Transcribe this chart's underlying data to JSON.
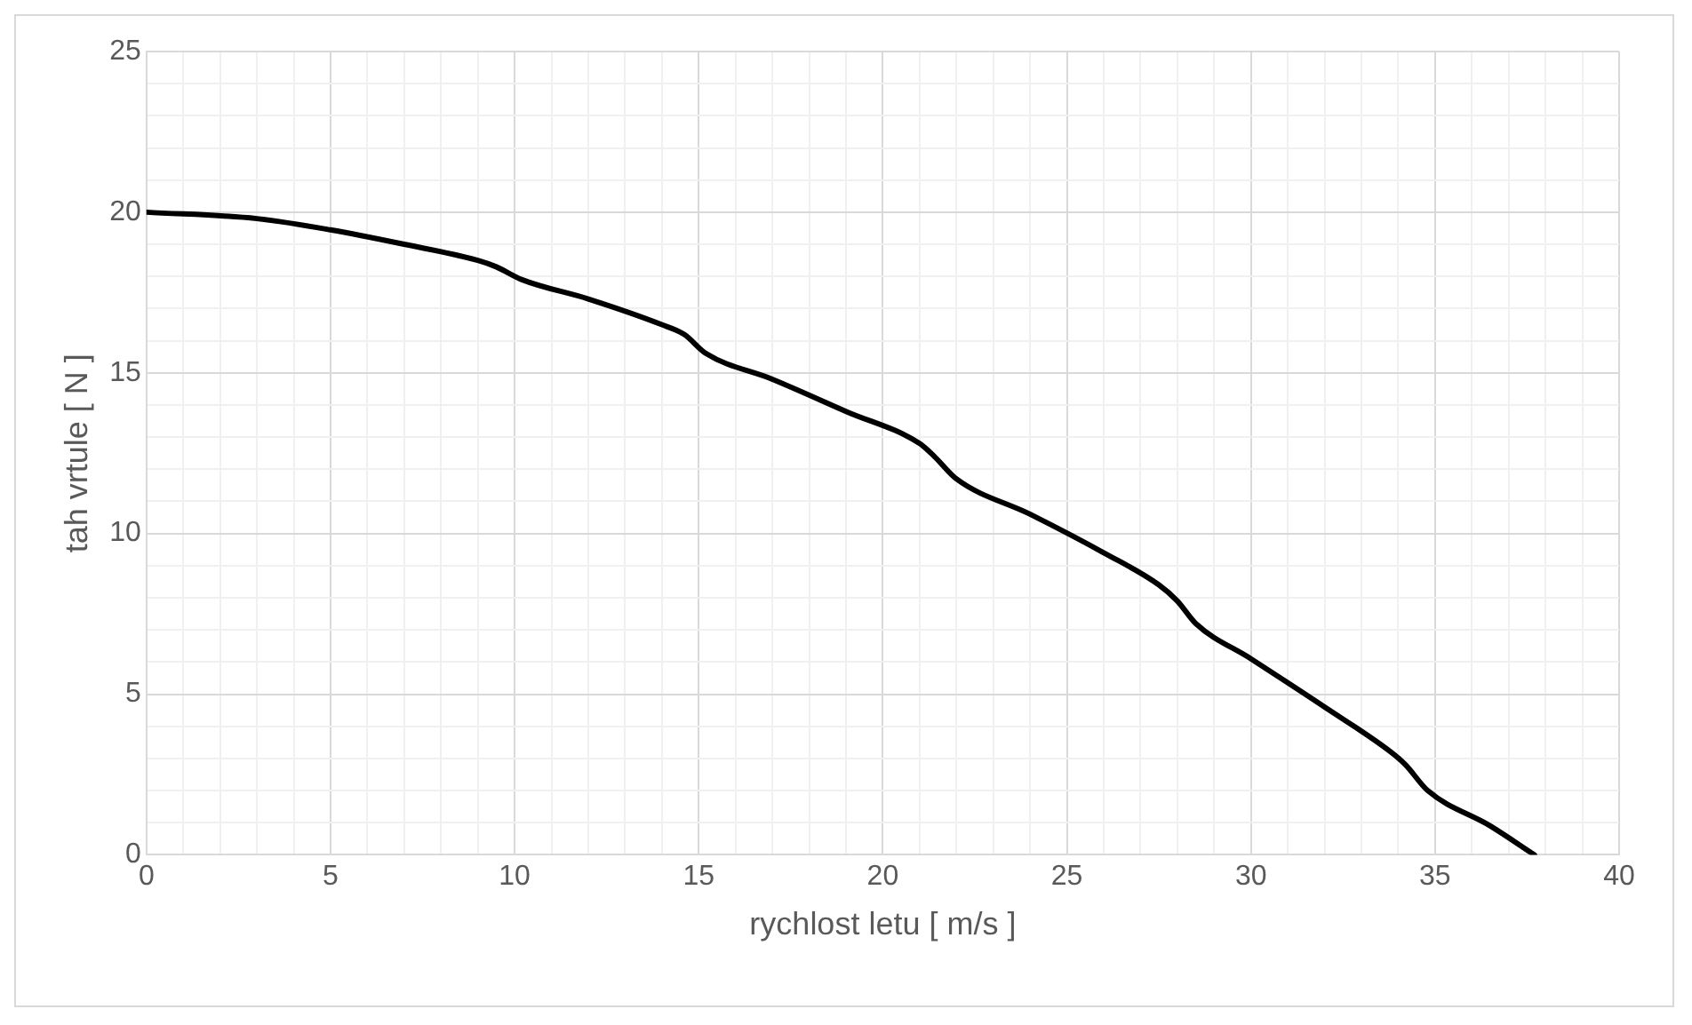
{
  "chart_data": {
    "type": "line",
    "xlabel": "rychlost letu [ m/s ]",
    "ylabel": "tah vrtule [ N ]",
    "x": [
      0,
      3,
      5,
      7,
      9,
      9.5,
      10.2,
      12,
      14,
      14.6,
      15.2,
      17,
      19,
      21,
      21.4,
      22,
      24,
      26,
      27.5,
      28,
      28.5,
      30,
      32,
      33.8,
      34.2,
      34.8,
      36.5,
      37.7
    ],
    "series": [
      {
        "color": "#000000",
        "values": [
          20,
          19.8,
          19.45,
          19.0,
          18.5,
          18.3,
          17.9,
          17.3,
          16.5,
          16.2,
          15.6,
          14.8,
          13.8,
          12.8,
          12.4,
          11.7,
          10.6,
          9.4,
          8.4,
          7.9,
          7.2,
          6.1,
          4.6,
          3.2,
          2.8,
          2.0,
          0.9,
          0
        ]
      }
    ],
    "xlim": [
      0,
      40
    ],
    "ylim": [
      0,
      25
    ],
    "xticks": [
      0,
      {
        "value": 1,
        "label": null
      },
      {
        "value": 2,
        "label": null
      },
      {
        "value": 3,
        "label": null
      },
      {
        "value": 4,
        "label": null
      },
      5,
      {
        "value": 6,
        "label": null
      },
      {
        "value": 7,
        "label": null
      },
      {
        "value": 8,
        "label": null
      },
      {
        "value": 9,
        "label": null
      },
      10,
      {
        "value": 11,
        "label": null
      },
      {
        "value": 12,
        "label": null
      },
      {
        "value": 13,
        "label": null
      },
      {
        "value": 14,
        "label": null
      },
      15,
      {
        "value": 16,
        "label": null
      },
      {
        "value": 17,
        "label": null
      },
      {
        "value": 18,
        "label": null
      },
      {
        "value": 19,
        "label": null
      },
      20,
      {
        "value": 21,
        "label": null
      },
      {
        "value": 22,
        "label": null
      },
      {
        "value": 23,
        "label": null
      },
      {
        "value": 24,
        "label": null
      },
      25,
      {
        "value": 26,
        "label": null
      },
      {
        "value": 27,
        "label": null
      },
      {
        "value": 28,
        "label": null
      },
      {
        "value": 29,
        "label": null
      },
      30,
      {
        "value": 31,
        "label": null
      },
      {
        "value": 32,
        "label": null
      },
      {
        "value": 33,
        "label": null
      },
      {
        "value": 34,
        "label": null
      },
      35,
      {
        "value": 36,
        "label": null
      },
      {
        "value": 37,
        "label": null
      },
      {
        "value": 38,
        "label": null
      },
      {
        "value": 39,
        "label": null
      },
      40
    ],
    "yticks": [
      0,
      {
        "value": 1,
        "label": null
      },
      {
        "value": 2,
        "label": null
      },
      {
        "value": 3,
        "label": null
      },
      {
        "value": 4,
        "label": null
      },
      5,
      {
        "value": 6,
        "label": null
      },
      {
        "value": 7,
        "label": null
      },
      {
        "value": 8,
        "label": null
      },
      {
        "value": 9,
        "label": null
      },
      10,
      {
        "value": 11,
        "label": null
      },
      {
        "value": 12,
        "label": null
      },
      {
        "value": 13,
        "label": null
      },
      {
        "value": 14,
        "label": null
      },
      15,
      {
        "value": 16,
        "label": null
      },
      {
        "value": 17,
        "label": null
      },
      {
        "value": 18,
        "label": null
      },
      {
        "value": 19,
        "label": null
      },
      20,
      {
        "value": 21,
        "label": null
      },
      {
        "value": 22,
        "label": null
      },
      {
        "value": 23,
        "label": null
      },
      {
        "value": 24,
        "label": null
      },
      25
    ],
    "grid": true,
    "legend": false,
    "marker": "none",
    "line_style": "solid"
  }
}
